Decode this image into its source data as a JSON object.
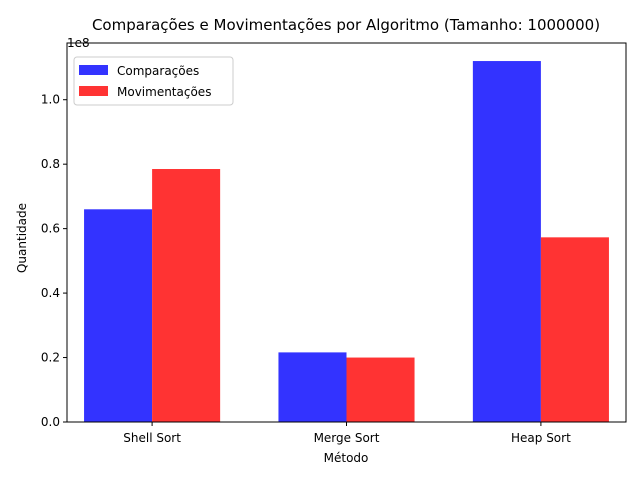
{
  "chart_data": {
    "type": "bar",
    "title": "Comparações e Movimentações por Algoritmo (Tamanho: 1000000)",
    "xlabel": "Método",
    "ylabel": "Quantidade",
    "y_offset_label": "1e8",
    "y_tick_scale": 100000000,
    "categories": [
      "Shell Sort",
      "Merge Sort",
      "Heap Sort"
    ],
    "series": [
      {
        "name": "Comparações",
        "color": "#3333ff",
        "values": [
          66000000,
          21600000,
          112000000
        ]
      },
      {
        "name": "Movimentações",
        "color": "#ff3333",
        "values": [
          78500000,
          20000000,
          57300000
        ]
      }
    ],
    "ylim": [
      0,
      117600000
    ],
    "y_ticks": [
      {
        "value": 0,
        "label": "0.0"
      },
      {
        "value": 20000000,
        "label": "0.2"
      },
      {
        "value": 40000000,
        "label": "0.4"
      },
      {
        "value": 60000000,
        "label": "0.6"
      },
      {
        "value": 80000000,
        "label": "0.8"
      },
      {
        "value": 100000000,
        "label": "1.0"
      }
    ],
    "grid": false,
    "legend_position": "top-left"
  }
}
